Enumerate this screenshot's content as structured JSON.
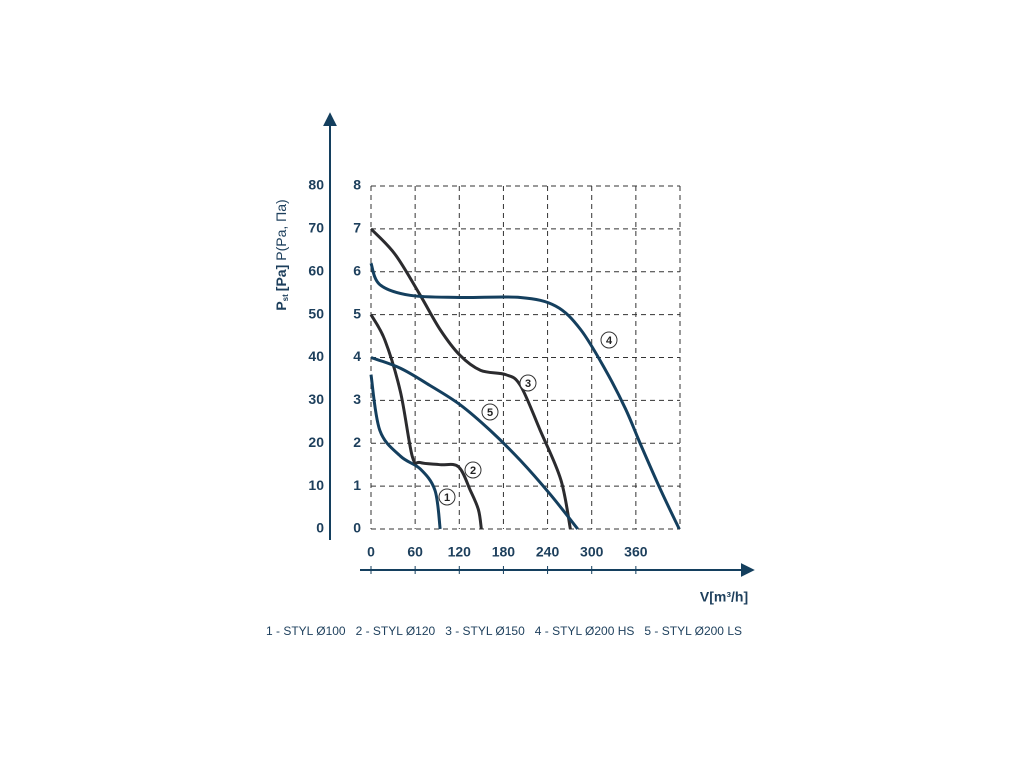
{
  "chart_data": {
    "type": "line",
    "y_label": "P",
    "y_label_sub": "st",
    "y_label_unit": "[Pa]",
    "y2_label": "P(Pa, Па)",
    "x_label": "V[m³/h]",
    "xlim": [
      0,
      420
    ],
    "xticks": [
      0,
      60,
      120,
      180,
      240,
      300,
      360
    ],
    "ylim": [
      0,
      8
    ],
    "yticks": [
      0,
      1,
      2,
      3,
      4,
      5,
      6,
      7,
      8
    ],
    "y2lim": [
      0,
      80
    ],
    "y2ticks": [
      0,
      10,
      20,
      30,
      40,
      50,
      60,
      70,
      80
    ],
    "grid": true,
    "series": [
      {
        "name": "1 - STYL Ø100",
        "marker": "1",
        "color": "#143f5e",
        "x": [
          0,
          12,
          40,
          67,
          87,
          94
        ],
        "values": [
          3.6,
          2.3,
          1.7,
          1.4,
          0.9,
          0
        ]
      },
      {
        "name": "2 - STYL Ø120",
        "marker": "2",
        "color": "#2b2b2e",
        "x": [
          0,
          19,
          40,
          56,
          67,
          94,
          119,
          135,
          146,
          150
        ],
        "values": [
          5.0,
          4.4,
          3.2,
          1.7,
          1.55,
          1.5,
          1.45,
          0.9,
          0.45,
          0
        ]
      },
      {
        "name": "3 - STYL Ø150",
        "marker": "3",
        "color": "#2b2b2e",
        "x": [
          0,
          33,
          67,
          94,
          121,
          149,
          183,
          203,
          230,
          258,
          271
        ],
        "values": [
          7.0,
          6.4,
          5.45,
          4.65,
          4.05,
          3.7,
          3.6,
          3.35,
          2.3,
          1.15,
          0
        ]
      },
      {
        "name": "4 - STYL Ø200 HS",
        "marker": "4",
        "color": "#143f5e",
        "x": [
          0,
          12,
          53,
          121,
          203,
          251,
          285,
          319,
          346,
          367,
          394,
          419
        ],
        "values": [
          6.2,
          5.7,
          5.45,
          5.4,
          5.4,
          5.2,
          4.65,
          3.7,
          2.8,
          1.95,
          0.9,
          0
        ]
      },
      {
        "name": "5 - STYL Ø200 LS",
        "marker": "5",
        "color": "#143f5e",
        "x": [
          0,
          40,
          80,
          121,
          162,
          203,
          244,
          281
        ],
        "values": [
          4.0,
          3.75,
          3.35,
          2.9,
          2.3,
          1.6,
          0.8,
          0
        ]
      }
    ]
  }
}
